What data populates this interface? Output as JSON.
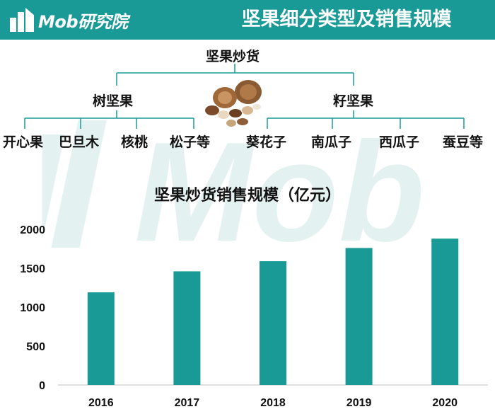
{
  "header": {
    "logo_text": "Mob研究院",
    "title": "坚果细分类型及销售规模"
  },
  "watermark": {
    "text": "Mob"
  },
  "tree": {
    "root": "坚果炒货",
    "left": {
      "label": "树坚果",
      "children": [
        "开心果",
        "巴旦木",
        "核桃",
        "松子等"
      ]
    },
    "right": {
      "label": "籽坚果",
      "children": [
        "葵花子",
        "南瓜子",
        "西瓜子",
        "蚕豆等"
      ]
    },
    "line_color": "#1a9a96"
  },
  "chart_data": {
    "type": "bar",
    "title": "坚果炒货销售规模（亿元）",
    "categories": [
      "2016",
      "2017",
      "2018",
      "2019",
      "2020"
    ],
    "values": [
      1190,
      1460,
      1590,
      1760,
      1880
    ],
    "ylim": [
      0,
      2000
    ],
    "yticks": [
      0,
      500,
      1000,
      1500,
      2000
    ],
    "bar_color": "#1a9a96",
    "grid": false,
    "xlabel": "",
    "ylabel": ""
  }
}
